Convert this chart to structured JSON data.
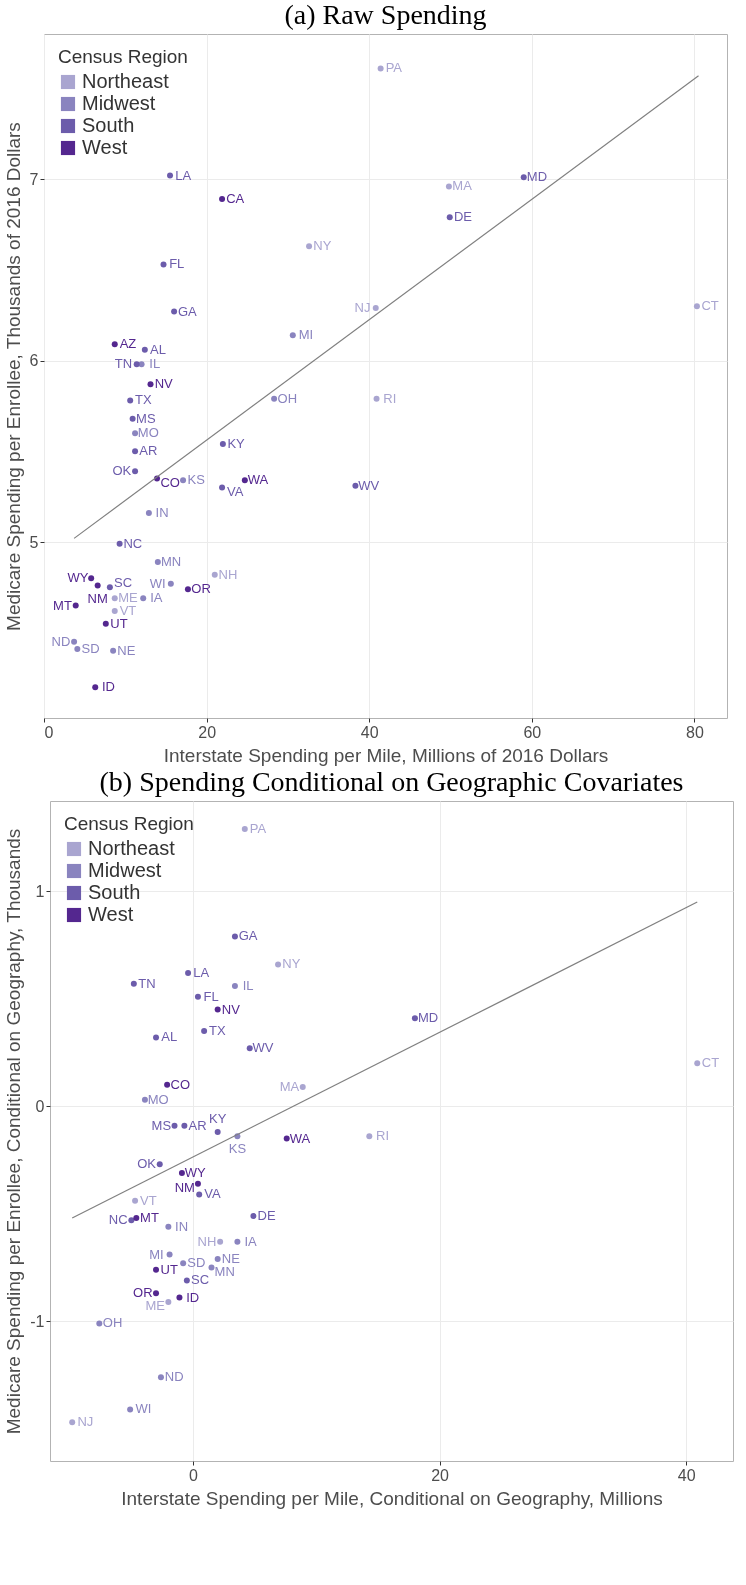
{
  "chart_data": [
    {
      "type": "scatter",
      "title": "(a) Raw Spending",
      "xlabel": "Interstate Spending per Mile, Millions of 2016 Dollars",
      "ylabel": "Medicare Spending per Enrollee, Thousands of 2016 Dollars",
      "legend_title": "Census Region",
      "legend": "top left",
      "grid": true,
      "marker": "circle",
      "xlim": [
        0,
        84
      ],
      "ylim": [
        4.03,
        7.8
      ],
      "xticks": [
        0,
        20,
        40,
        60,
        80
      ],
      "yticks": [
        5,
        6,
        7
      ],
      "series": [
        {
          "name": "Northeast",
          "color": "#a9a5d0",
          "x": [
            41.4,
            49.8,
            32.6,
            40.8,
            80.3,
            40.9,
            21.0,
            8.7,
            8.7
          ],
          "values": [
            7.61,
            6.96,
            6.63,
            6.29,
            6.3,
            5.79,
            4.82,
            4.69,
            4.62
          ],
          "value_labels": [
            "PA",
            "MA",
            "NY",
            "NJ",
            "CT",
            "RI",
            "NH",
            "ME",
            "VT"
          ]
        },
        {
          "name": "Midwest",
          "color": "#8a84bf",
          "x": [
            12.0,
            30.6,
            28.3,
            11.2,
            17.1,
            12.9,
            14.0,
            15.6,
            12.2,
            3.7,
            4.1,
            8.5
          ],
          "values": [
            5.98,
            6.14,
            5.79,
            5.6,
            5.34,
            5.16,
            4.89,
            4.77,
            4.69,
            4.45,
            4.41,
            4.4
          ],
          "value_labels": [
            "IL",
            "MI",
            "OH",
            "MO",
            "KS",
            "IN",
            "MN",
            "WI",
            "IA",
            "ND",
            "SD",
            "NE"
          ]
        },
        {
          "name": "South",
          "color": "#6c5cab",
          "x": [
            15.5,
            59.0,
            49.9,
            14.7,
            16.0,
            12.4,
            11.4,
            10.6,
            10.9,
            11.2,
            11.2,
            22.0,
            21.9,
            38.3,
            9.3,
            8.1
          ],
          "values": [
            7.02,
            7.01,
            6.79,
            6.53,
            6.27,
            6.06,
            5.98,
            5.78,
            5.68,
            5.5,
            5.39,
            5.54,
            5.3,
            5.31,
            4.99,
            4.75
          ],
          "value_labels": [
            "LA",
            "MD",
            "DE",
            "FL",
            "GA",
            "AL",
            "TN",
            "TX",
            "MS",
            "AR",
            "OK",
            "KY",
            "VA",
            "WV",
            "NC",
            "SC"
          ]
        },
        {
          "name": "West",
          "color": "#54278f",
          "x": [
            21.9,
            8.7,
            13.1,
            13.9,
            24.7,
            5.8,
            6.6,
            17.7,
            3.9,
            7.6,
            6.3
          ],
          "values": [
            6.89,
            6.09,
            5.87,
            5.35,
            5.34,
            4.8,
            4.76,
            4.74,
            4.65,
            4.55,
            4.2
          ],
          "value_labels": [
            "CA",
            "AZ",
            "NV",
            "CO",
            "WA",
            "WY",
            "NM",
            "OR",
            "MT",
            "UT",
            "ID"
          ]
        },
        {
          "type": "line",
          "color": "#808080",
          "marker": "none",
          "x": [
            3.7,
            80.5
          ],
          "values": [
            5.02,
            7.57
          ]
        }
      ]
    },
    {
      "type": "scatter",
      "title": "(b) Spending Conditional on Geographic Covariates",
      "xlabel": "Interstate Spending per Mile, Conditional on Geography, Millions",
      "ylabel": "Medicare Spending per Enrollee, Conditional on Geography, Thousands",
      "legend_title": "Census Region",
      "legend": "top left",
      "grid": true,
      "marker": "circle",
      "xlim": [
        -11.6,
        43.8
      ],
      "ylim": [
        -1.65,
        1.42
      ],
      "xticks": [
        0,
        20,
        40
      ],
      "yticks": [
        -1,
        0,
        1
      ],
      "series": [
        {
          "name": "Northeast",
          "color": "#a9a5d0",
          "x": [
            4.2,
            6.9,
            8.9,
            40.9,
            14.3,
            2.2,
            -4.7,
            -2.0,
            -9.8
          ],
          "values": [
            1.29,
            0.66,
            0.09,
            0.2,
            -0.14,
            -0.63,
            -0.44,
            -0.91,
            -1.47
          ],
          "value_labels": [
            "PA",
            "NY",
            "MA",
            "CT",
            "RI",
            "NH",
            "VT",
            "ME",
            "NJ"
          ]
        },
        {
          "name": "Midwest",
          "color": "#8a84bf",
          "x": [
            3.4,
            -3.9,
            3.6,
            -2.0,
            -1.9,
            -0.8,
            2.0,
            1.5,
            3.6,
            -7.6,
            -2.6,
            -5.1
          ],
          "values": [
            0.56,
            0.03,
            -0.14,
            -0.56,
            -0.69,
            -0.73,
            -0.71,
            -0.75,
            -0.63,
            -1.01,
            -1.26,
            -1.41
          ],
          "value_labels": [
            "IL",
            "MO",
            "KS",
            "IN",
            "MI",
            "SD",
            "NE",
            "MN",
            "IA",
            "OH",
            "ND",
            "WI"
          ]
        },
        {
          "name": "South",
          "color": "#6c5cab",
          "x": [
            3.4,
            -0.4,
            -4.8,
            0.4,
            0.9,
            -3.0,
            4.6,
            18.0,
            -1.5,
            -0.7,
            2.0,
            -2.7,
            0.5,
            4.9,
            -5.0,
            -0.5
          ],
          "values": [
            0.79,
            0.62,
            0.57,
            0.51,
            0.35,
            0.32,
            0.27,
            0.41,
            -0.09,
            -0.09,
            -0.12,
            -0.27,
            -0.41,
            -0.51,
            -0.53,
            -0.81
          ],
          "value_labels": [
            "GA",
            "LA",
            "TN",
            "FL",
            "TX",
            "AL",
            "WV",
            "MD",
            "MS",
            "AR",
            "KY",
            "OK",
            "VA",
            "DE",
            "NC",
            "SC"
          ]
        },
        {
          "name": "West",
          "color": "#54278f",
          "x": [
            2.0,
            -2.1,
            7.6,
            -0.9,
            0.4,
            -4.6,
            -3.0,
            -3.0,
            -1.1
          ],
          "values": [
            0.45,
            0.1,
            -0.15,
            -0.31,
            -0.36,
            -0.52,
            -0.76,
            -0.87,
            -0.89
          ],
          "value_labels": [
            "NV",
            "CO",
            "WA",
            "WY",
            "NM",
            "MT",
            "UT",
            "OR",
            "ID"
          ]
        },
        {
          "type": "line",
          "color": "#808080",
          "marker": "none",
          "x": [
            -9.8,
            40.9
          ],
          "values": [
            -0.52,
            0.95
          ]
        }
      ]
    }
  ]
}
